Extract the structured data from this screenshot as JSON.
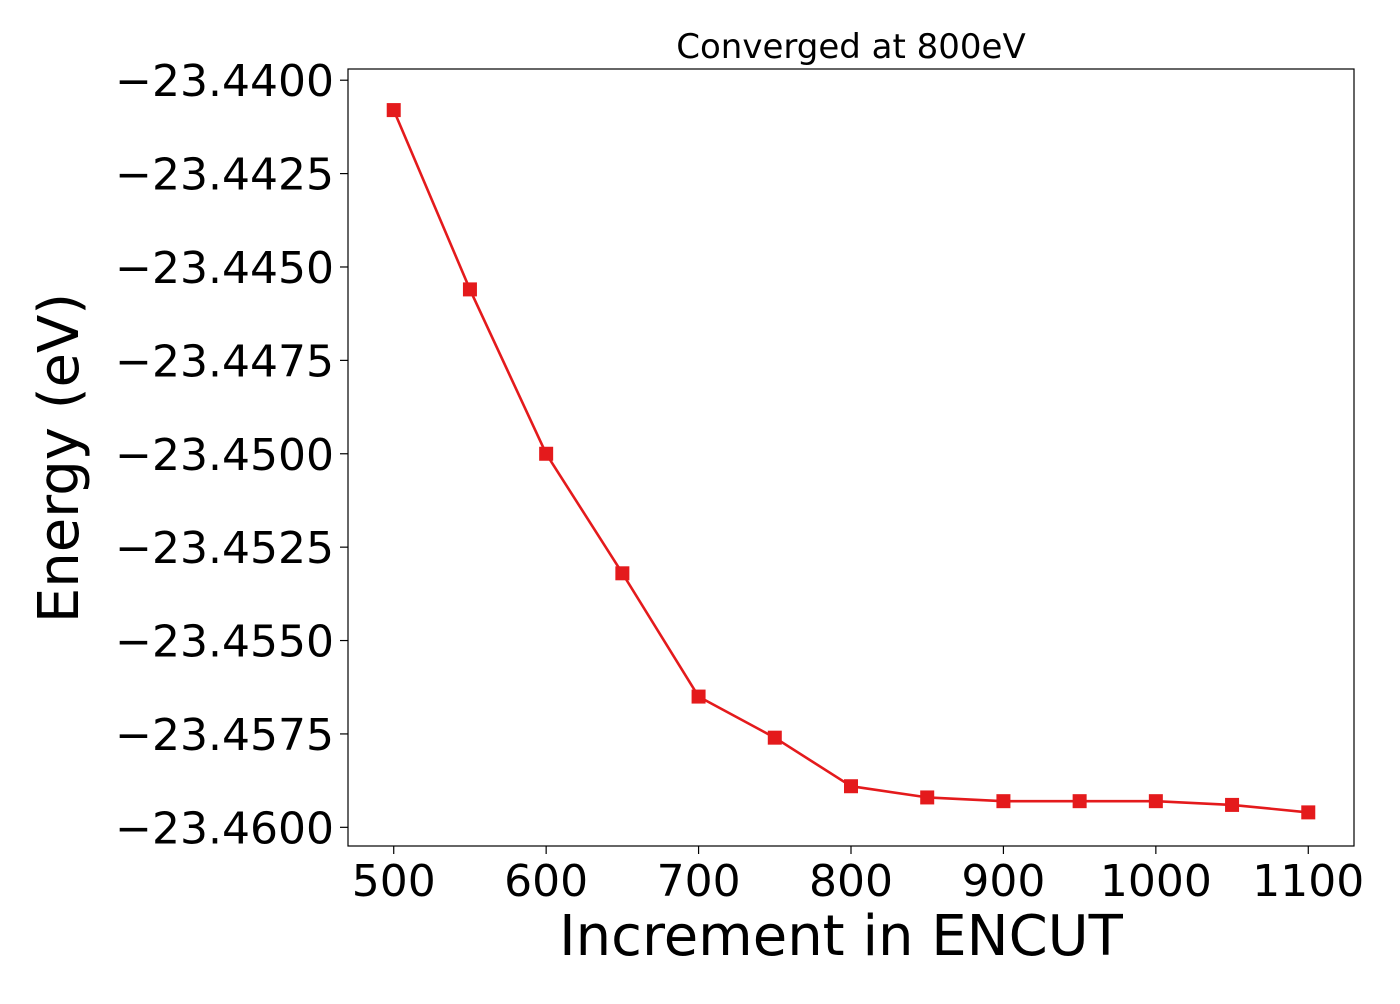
{
  "chart_data": {
    "type": "line",
    "title": "Converged at 800eV",
    "xlabel": "Increment in ENCUT",
    "ylabel": "Energy (eV)",
    "xlim": [
      470,
      1130
    ],
    "ylim": [
      -23.4605,
      -23.4397
    ],
    "x_ticks": [
      500,
      600,
      700,
      800,
      900,
      1000,
      1100
    ],
    "x_tick_labels": [
      "500",
      "600",
      "700",
      "800",
      "900",
      "1000",
      "1100"
    ],
    "y_ticks": [
      -23.44,
      -23.4425,
      -23.445,
      -23.4475,
      -23.45,
      -23.4525,
      -23.455,
      -23.4575,
      -23.46
    ],
    "y_tick_labels": [
      "−23.4400",
      "−23.4425",
      "−23.4450",
      "−23.4475",
      "−23.4500",
      "−23.4525",
      "−23.4550",
      "−23.4575",
      "−23.4600"
    ],
    "grid": false,
    "legend": "none",
    "series": [
      {
        "color": "#e41a1c",
        "marker": "square",
        "x": [
          500,
          550,
          600,
          650,
          700,
          750,
          800,
          850,
          900,
          950,
          1000,
          1050,
          1100
        ],
        "y": [
          -23.4408,
          -23.4456,
          -23.45,
          -23.4532,
          -23.4565,
          -23.4576,
          -23.4589,
          -23.4592,
          -23.4593,
          -23.4593,
          -23.4593,
          -23.4594,
          -23.4596
        ]
      }
    ]
  }
}
